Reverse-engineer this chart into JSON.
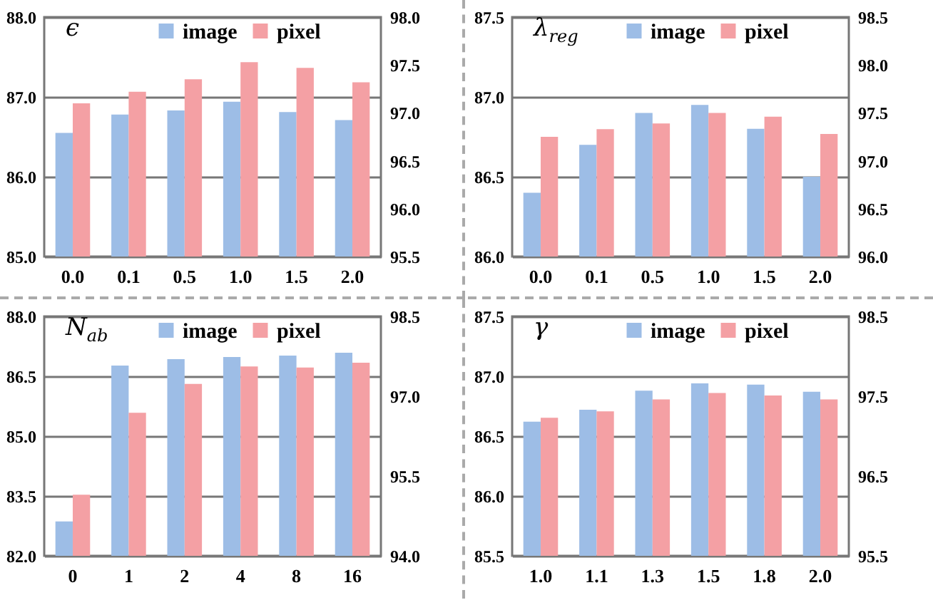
{
  "chart_data": [
    {
      "type": "bar",
      "title": "ϵ",
      "categories": [
        "0.0",
        "0.1",
        "0.5",
        "1.0",
        "1.5",
        "2.0"
      ],
      "series": [
        {
          "name": "image",
          "color": "#9dbde6",
          "values": [
            86.55,
            86.78,
            86.83,
            86.94,
            86.81,
            86.71
          ]
        },
        {
          "name": "pixel",
          "color": "#f4a0a4",
          "axis": "y2",
          "values": [
            97.1,
            97.22,
            97.35,
            97.53,
            97.47,
            97.32
          ]
        }
      ],
      "ylim": [
        85,
        88
      ],
      "yticks": [
        {
          "value": 85,
          "label": "85.0"
        },
        {
          "value": 86,
          "label": "86.0"
        },
        {
          "value": 87,
          "label": "87.0"
        },
        {
          "value": 88,
          "label": "88.0"
        }
      ],
      "y2lim": [
        95.5,
        98
      ],
      "y2ticks": [
        95.5,
        {
          "value": 96,
          "label": "96.0"
        },
        96.5,
        {
          "value": 97,
          "label": "97.0"
        },
        97.5,
        {
          "value": 98,
          "label": "98.0"
        }
      ],
      "grid": "y",
      "legend": "top"
    },
    {
      "type": "bar",
      "title": "λ$_{reg}$",
      "categories": [
        "0.0",
        "0.1",
        "0.5",
        "1.0",
        "1.5",
        "2.0"
      ],
      "series": [
        {
          "name": "image",
          "color": "#9dbde6",
          "values": [
            86.4,
            86.7,
            86.9,
            86.95,
            86.8,
            86.5
          ]
        },
        {
          "name": "pixel",
          "color": "#f4a0a4",
          "axis": "y2",
          "values": [
            97.25,
            97.33,
            97.39,
            97.5,
            97.46,
            97.28
          ]
        }
      ],
      "ylim": [
        86,
        87.5
      ],
      "yticks": [
        {
          "value": 86,
          "label": "86.0"
        },
        86.5,
        {
          "value": 87,
          "label": "87.0"
        },
        87.5
      ],
      "y2lim": [
        96,
        98.5
      ],
      "y2ticks": [
        {
          "value": 96,
          "label": "96.0"
        },
        96.5,
        {
          "value": 97,
          "label": "97.0"
        },
        97.5,
        {
          "value": 98,
          "label": "98.0"
        },
        98.5
      ],
      "grid": "y",
      "legend": "top"
    },
    {
      "type": "bar",
      "title": "N$_{ab}$",
      "categories": [
        "0",
        "1",
        "2",
        "4",
        "8",
        "16"
      ],
      "series": [
        {
          "name": "image",
          "color": "#9dbde6",
          "values": [
            82.86,
            86.77,
            86.93,
            86.98,
            87.02,
            87.09
          ]
        },
        {
          "name": "pixel",
          "color": "#f4a0a4",
          "axis": "y2",
          "values": [
            95.15,
            96.69,
            97.23,
            97.56,
            97.54,
            97.63
          ]
        }
      ],
      "ylim": [
        82,
        88
      ],
      "yticks": [
        {
          "value": 82,
          "label": "82.0"
        },
        83.5,
        {
          "value": 85,
          "label": "85.0"
        },
        86.5,
        {
          "value": 88,
          "label": "88.0"
        }
      ],
      "y2lim": [
        94,
        98.5
      ],
      "y2ticks": [
        {
          "value": 94,
          "label": "94.0"
        },
        95.5,
        {
          "value": 97,
          "label": "97.0"
        },
        98.5
      ],
      "grid": "y",
      "legend": "top"
    },
    {
      "type": "bar",
      "title": "γ",
      "categories": [
        "1.0",
        "1.1",
        "1.3",
        "1.5",
        "1.8",
        "2.0"
      ],
      "series": [
        {
          "name": "image",
          "color": "#9dbde6",
          "values": [
            86.62,
            86.72,
            86.88,
            86.94,
            86.93,
            86.87
          ]
        },
        {
          "name": "pixel",
          "color": "#f4a0a4",
          "axis": "y2",
          "values": [
            97.23,
            97.31,
            97.46,
            97.54,
            97.51,
            97.46
          ]
        }
      ],
      "ylim": [
        85.5,
        87.5
      ],
      "yticks": [
        85.5,
        {
          "value": 86,
          "label": "86.0"
        },
        86.5,
        {
          "value": 87,
          "label": "87.0"
        },
        87.5
      ],
      "y2lim": [
        95.5,
        98.5
      ],
      "y2ticks": [
        95.5,
        96.5,
        97.5,
        98.5
      ],
      "grid": "y",
      "legend": "top"
    }
  ]
}
